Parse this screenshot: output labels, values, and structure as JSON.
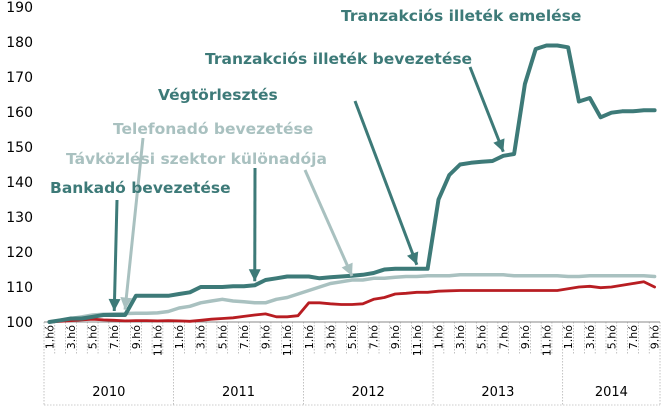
{
  "chart_data": {
    "type": "line",
    "title": "",
    "xlabel": "",
    "ylabel": "",
    "ylim": [
      100,
      190
    ],
    "yticks": [
      100,
      110,
      120,
      130,
      140,
      150,
      160,
      170,
      180,
      190
    ],
    "grid": false,
    "legend": "none",
    "x_labels": [
      "1.hó",
      "",
      "3.hó",
      "",
      "5.hó",
      "",
      "7.hó",
      "",
      "9.hó",
      "",
      "11.hó",
      "",
      "1.hó",
      "",
      "3.hó",
      "",
      "5.hó",
      "",
      "7.hó",
      "",
      "9.hó",
      "",
      "11.hó",
      "",
      "1.hó",
      "",
      "3.hó",
      "",
      "5.hó",
      "",
      "7.hó",
      "",
      "9.hó",
      "",
      "11.hó",
      "",
      "1.hó",
      "",
      "3.hó",
      "",
      "5.hó",
      "",
      "7.hó",
      "",
      "9.hó",
      "",
      "11.hó",
      "",
      "1.hó",
      "",
      "3.hó",
      "",
      "5.hó",
      "",
      "7.hó",
      "",
      "9.hó"
    ],
    "years": [
      {
        "label": "2010",
        "start": 0,
        "end": 11
      },
      {
        "label": "2011",
        "start": 12,
        "end": 23
      },
      {
        "label": "2012",
        "start": 24,
        "end": 35
      },
      {
        "label": "2013",
        "start": 36,
        "end": 47
      },
      {
        "label": "2014",
        "start": 48,
        "end": 56
      }
    ],
    "series": [
      {
        "color": "#3d7a78",
        "values": [
          100,
          100.5,
          101,
          101,
          101.5,
          102,
          102,
          102,
          107.5,
          107.5,
          107.5,
          107.5,
          108,
          108.5,
          110,
          110,
          110,
          110.2,
          110.2,
          110.5,
          112,
          112.5,
          113,
          113,
          113,
          112.5,
          112.8,
          113,
          113.2,
          113.5,
          114,
          115,
          115.2,
          115.2,
          115.2,
          115.2,
          135,
          142,
          145,
          145.5,
          145.8,
          146,
          147.5,
          148,
          168,
          178,
          179,
          179,
          178.5,
          163,
          164,
          158.5,
          159.8,
          160.2,
          160.2,
          160.5,
          160.5
        ]
      },
      {
        "color": "#a9c1c0",
        "values": [
          100,
          100.5,
          101,
          101.5,
          102,
          102.2,
          102.3,
          102.4,
          102.5,
          102.5,
          102.6,
          103,
          104,
          104.5,
          105.5,
          106,
          106.5,
          106,
          105.8,
          105.5,
          105.5,
          106.5,
          107,
          108,
          109,
          110,
          111,
          111.5,
          112,
          112,
          112.5,
          112.5,
          112.8,
          113,
          113,
          113.2,
          113.2,
          113.2,
          113.5,
          113.5,
          113.5,
          113.5,
          113.5,
          113.2,
          113.2,
          113.2,
          113.2,
          113.2,
          113,
          113,
          113.2,
          113.2,
          113.2,
          113.2,
          113.2,
          113.2,
          113
        ]
      },
      {
        "color": "#b81d22",
        "values": [
          100,
          100.2,
          100.4,
          100.6,
          100.8,
          100.6,
          100.5,
          100.3,
          100.4,
          100.4,
          100.3,
          100.4,
          100.3,
          100.2,
          100.5,
          100.8,
          101,
          101.2,
          101.6,
          102,
          102.3,
          101.5,
          101.5,
          101.8,
          105.5,
          105.5,
          105.2,
          105,
          105,
          105.2,
          106.5,
          107,
          108,
          108.2,
          108.5,
          108.5,
          108.8,
          108.9,
          109,
          109,
          109,
          109,
          109,
          109,
          109,
          109,
          109,
          109,
          109.5,
          110,
          110.2,
          109.8,
          110,
          110.5,
          111,
          111.5,
          110
        ]
      }
    ],
    "annotations": [
      {
        "text": "Tranzakciós illeték emelése",
        "color": "#3d7a78"
      },
      {
        "text": "Tranzakciós illeték bevezetése",
        "color": "#3d7a78"
      },
      {
        "text": "Végtörlesztés",
        "color": "#3d7a78"
      },
      {
        "text": "Telefonadó bevezetése",
        "color": "#a9c1c0"
      },
      {
        "text": "Távközlési szektor különadója",
        "color": "#a9c1c0"
      },
      {
        "text": "Bankadó bevezetése",
        "color": "#3d7a78"
      }
    ]
  }
}
